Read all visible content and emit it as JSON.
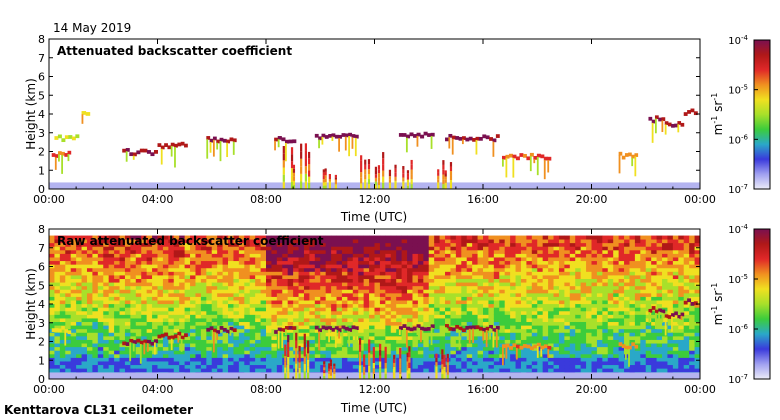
{
  "date": "14 May 2019",
  "instrument": "Kenttarova CL31 ceilometer",
  "colors": {
    "noise_floor": "#b4b4f0"
  },
  "colorbar": {
    "ticks": [
      {
        "label": "10",
        "exp": "-4",
        "frac": 1.0
      },
      {
        "label": "10",
        "exp": "-5",
        "frac": 0.6667
      },
      {
        "label": "10",
        "exp": "-6",
        "frac": 0.3333
      },
      {
        "label": "10",
        "exp": "-7",
        "frac": 0.0
      }
    ],
    "unit": [
      "m",
      "-1",
      " sr",
      "-1"
    ],
    "stops": [
      "#ececf8",
      "#a0a0f0",
      "#3a3adc",
      "#2aa8c8",
      "#3ccc3c",
      "#a8e02a",
      "#f0e020",
      "#f09020",
      "#e02828",
      "#b01818",
      "#7a1050"
    ]
  },
  "chart_data": [
    {
      "type": "heatmap",
      "title": "Attenuated backscatter coefficient",
      "xlabel": "Time (UTC)",
      "ylabel": "Height (km)",
      "xlim": [
        0,
        24
      ],
      "ylim": [
        0,
        8
      ],
      "x_ticks": [
        {
          "v": 0,
          "label": "00:00"
        },
        {
          "v": 4,
          "label": "04:00"
        },
        {
          "v": 8,
          "label": "08:00"
        },
        {
          "v": 12,
          "label": "12:00"
        },
        {
          "v": 16,
          "label": "16:00"
        },
        {
          "v": 20,
          "label": "20:00"
        },
        {
          "v": 24,
          "label": "00:00"
        }
      ],
      "y_ticks": [
        0,
        1,
        2,
        3,
        4,
        5,
        6,
        7,
        8
      ],
      "background": "white",
      "noise_floor_km": 0.35,
      "cloud_layers": [
        {
          "t0": 0.1,
          "t1": 0.8,
          "h": 1.8,
          "v": 0.75
        },
        {
          "t0": 0.2,
          "t1": 1.1,
          "h": 2.7,
          "v": 0.55
        },
        {
          "t0": 1.2,
          "t1": 1.5,
          "h": 4.1,
          "v": 0.6
        },
        {
          "t0": 2.7,
          "t1": 4.0,
          "h": 1.95,
          "v": 0.95
        },
        {
          "t0": 4.0,
          "t1": 5.1,
          "h": 2.3,
          "v": 0.9
        },
        {
          "t0": 5.8,
          "t1": 6.9,
          "h": 2.6,
          "v": 0.95
        },
        {
          "t0": 8.3,
          "t1": 9.1,
          "h": 2.6,
          "v": 0.97
        },
        {
          "t0": 9.8,
          "t1": 11.4,
          "h": 2.8,
          "v": 1.0
        },
        {
          "t0": 12.9,
          "t1": 14.2,
          "h": 2.9,
          "v": 1.0
        },
        {
          "t0": 14.6,
          "t1": 16.6,
          "h": 2.7,
          "v": 0.95
        },
        {
          "t0": 16.7,
          "t1": 18.5,
          "h": 1.7,
          "v": 0.75
        },
        {
          "t0": 21.0,
          "t1": 21.7,
          "h": 1.75,
          "v": 0.7
        },
        {
          "t0": 22.1,
          "t1": 22.7,
          "h": 3.7,
          "v": 0.95
        },
        {
          "t0": 22.7,
          "t1": 23.4,
          "h": 3.4,
          "v": 0.95
        },
        {
          "t0": 23.4,
          "t1": 23.9,
          "h": 4.1,
          "v": 0.95
        }
      ],
      "precipitation_shafts": [
        {
          "t0": 8.6,
          "t1": 9.6,
          "h": 2.5
        },
        {
          "t0": 10.0,
          "t1": 10.6,
          "h": 1.4
        },
        {
          "t0": 11.4,
          "t1": 12.4,
          "h": 2.2
        },
        {
          "t0": 12.5,
          "t1": 13.4,
          "h": 2.0
        },
        {
          "t0": 14.2,
          "t1": 14.8,
          "h": 1.6
        }
      ]
    },
    {
      "type": "heatmap",
      "title": "Raw attenuated backscatter coefficient",
      "xlabel": "Time (UTC)",
      "ylabel": "Height (km)",
      "xlim": [
        0,
        24
      ],
      "ylim": [
        0,
        8
      ],
      "x_ticks": [
        {
          "v": 0,
          "label": "00:00"
        },
        {
          "v": 4,
          "label": "04:00"
        },
        {
          "v": 8,
          "label": "08:00"
        },
        {
          "v": 12,
          "label": "12:00"
        },
        {
          "v": 16,
          "label": "16:00"
        },
        {
          "v": 20,
          "label": "20:00"
        },
        {
          "v": 24,
          "label": "00:00"
        }
      ],
      "y_ticks": [
        0,
        1,
        2,
        3,
        4,
        5,
        6,
        7,
        8
      ],
      "background": "noise",
      "noise_floor_km": 0.35,
      "cloud_layers": [
        {
          "t0": 0.1,
          "t1": 0.8,
          "h": 2.6,
          "v": 0.6
        },
        {
          "t0": 2.7,
          "t1": 4.0,
          "h": 1.95,
          "v": 0.95
        },
        {
          "t0": 4.0,
          "t1": 5.1,
          "h": 2.3,
          "v": 0.9
        },
        {
          "t0": 5.8,
          "t1": 6.9,
          "h": 2.6,
          "v": 0.95
        },
        {
          "t0": 8.3,
          "t1": 9.1,
          "h": 2.6,
          "v": 0.97
        },
        {
          "t0": 9.8,
          "t1": 11.4,
          "h": 2.7,
          "v": 1.0
        },
        {
          "t0": 12.9,
          "t1": 14.2,
          "h": 2.7,
          "v": 1.0
        },
        {
          "t0": 14.6,
          "t1": 16.6,
          "h": 2.7,
          "v": 0.95
        },
        {
          "t0": 16.7,
          "t1": 18.5,
          "h": 1.7,
          "v": 0.75
        },
        {
          "t0": 21.0,
          "t1": 21.7,
          "h": 1.75,
          "v": 0.7
        },
        {
          "t0": 22.1,
          "t1": 22.7,
          "h": 3.7,
          "v": 0.95
        },
        {
          "t0": 22.7,
          "t1": 23.4,
          "h": 3.4,
          "v": 0.95
        },
        {
          "t0": 23.4,
          "t1": 23.9,
          "h": 4.1,
          "v": 0.95
        }
      ],
      "precipitation_shafts": [
        {
          "t0": 8.6,
          "t1": 9.6,
          "h": 2.5
        },
        {
          "t0": 10.0,
          "t1": 10.6,
          "h": 1.4
        },
        {
          "t0": 11.4,
          "t1": 12.4,
          "h": 2.2
        },
        {
          "t0": 12.5,
          "t1": 13.4,
          "h": 2.0
        },
        {
          "t0": 14.2,
          "t1": 14.8,
          "h": 1.6
        }
      ]
    }
  ]
}
